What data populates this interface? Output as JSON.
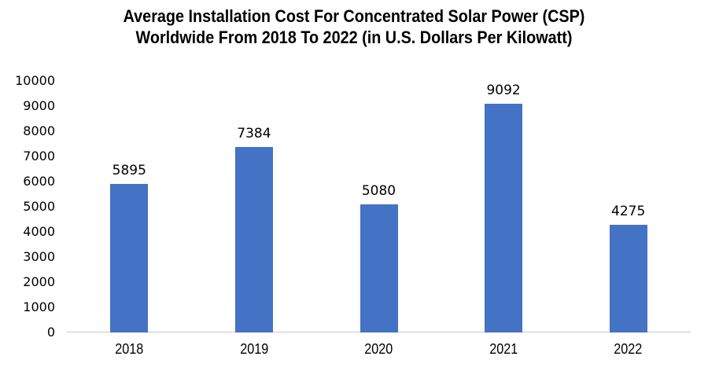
{
  "chart_data": {
    "type": "bar",
    "title": "Average Installation Cost For Concentrated Solar Power (CSP) Worldwide From 2018 To 2022 (in U.S. Dollars Per Kilowatt)",
    "title_lines": [
      "Average Installation Cost For Concentrated Solar Power (CSP)",
      "Worldwide From 2018 To 2022 (in U.S. Dollars Per Kilowatt)"
    ],
    "categories": [
      "2018",
      "2019",
      "2020",
      "2021",
      "2022"
    ],
    "values": [
      5895,
      7384,
      5080,
      9092,
      4275
    ],
    "xlabel": "",
    "ylabel": "",
    "ylim": [
      0,
      10000
    ],
    "yticks": [
      0,
      1000,
      2000,
      3000,
      4000,
      5000,
      6000,
      7000,
      8000,
      9000,
      10000
    ],
    "grid": false,
    "legend": false,
    "data_labels": true,
    "colors": {
      "bar": "#4472C4",
      "axis_line": "#C8C8C8",
      "text": "#000000",
      "background": "#FFFFFF"
    }
  }
}
